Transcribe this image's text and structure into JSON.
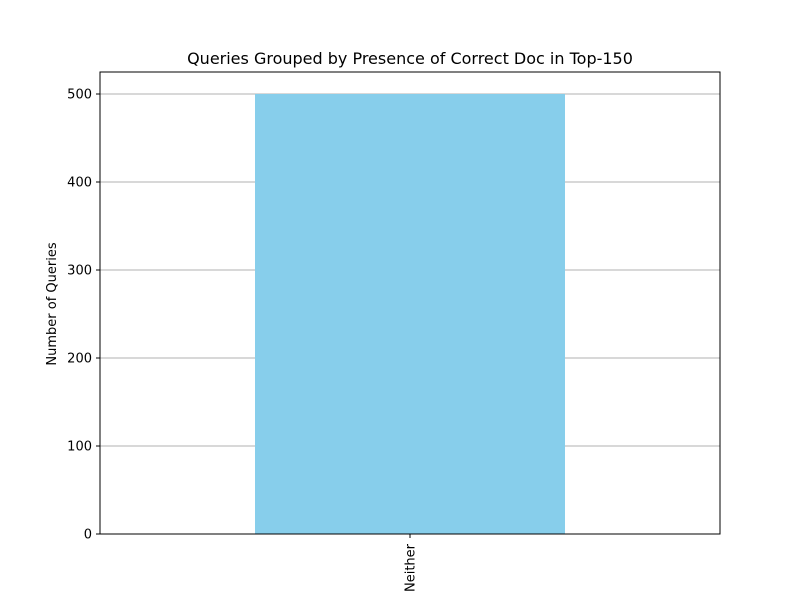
{
  "chart_data": {
    "type": "bar",
    "title": "Queries Grouped by Presence of Correct Doc in Top-150",
    "xlabel": "",
    "ylabel": "Number of Queries",
    "categories": [
      "Neither"
    ],
    "values": [
      500
    ],
    "ylim": [
      0,
      525
    ],
    "yticks": [
      0,
      100,
      200,
      300,
      400,
      500
    ],
    "grid": "y",
    "legend": "none",
    "colors": {
      "bar": "#87CEEB",
      "grid": "#b0b0b0",
      "axis": "#000000"
    }
  }
}
